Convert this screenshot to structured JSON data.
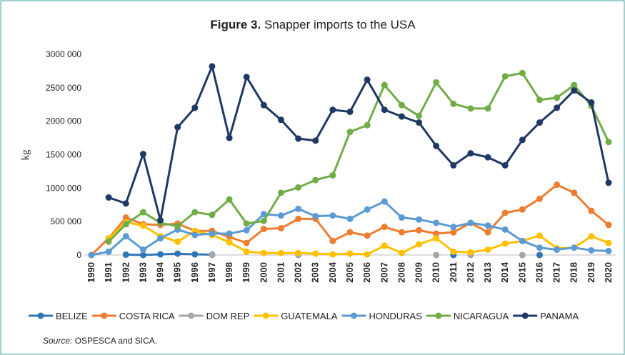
{
  "chart_data": {
    "type": "line",
    "title_label": "Figure 3.",
    "title": "Snapper imports to the USA",
    "y_label": "kg",
    "source_label": "Source:",
    "source": "OSPESCA and SICA.",
    "categories": [
      "1990",
      "1991",
      "1992",
      "1993",
      "1994",
      "1995",
      "1996",
      "1997",
      "1998",
      "1999",
      "2000",
      "2001",
      "2002",
      "2003",
      "2004",
      "2005",
      "2006",
      "2007",
      "2008",
      "2009",
      "2010",
      "2011",
      "2012",
      "2013",
      "2014",
      "2015",
      "2016",
      "2017",
      "2018",
      "2019",
      "2020"
    ],
    "ylim": [
      0,
      3000000
    ],
    "yticks": [
      0,
      {
        "value": 500000,
        "label": "500 000"
      },
      {
        "value": 1000000,
        "label": "1000 000"
      },
      {
        "value": 1500000,
        "label": "1500 000"
      },
      {
        "value": 2000000,
        "label": "2000 000"
      },
      {
        "value": 2500000,
        "label": "2500 000"
      },
      {
        "value": 3000000,
        "label": "3000 000"
      }
    ],
    "grid": false,
    "legend": "bottom",
    "series": [
      {
        "name": "BELIZE",
        "color": "#2e75b6",
        "values": [
          null,
          null,
          5000,
          0,
          10000,
          20000,
          10000,
          5000,
          null,
          null,
          null,
          null,
          null,
          null,
          null,
          null,
          null,
          null,
          null,
          null,
          null,
          0,
          null,
          null,
          null,
          null,
          0,
          null,
          null,
          null,
          null
        ]
      },
      {
        "name": "COSTA RICA",
        "color": "#ed7d31",
        "values": [
          0,
          250000,
          560000,
          460000,
          450000,
          470000,
          360000,
          360000,
          270000,
          180000,
          390000,
          400000,
          540000,
          540000,
          210000,
          340000,
          290000,
          420000,
          340000,
          370000,
          320000,
          340000,
          480000,
          340000,
          630000,
          680000,
          840000,
          1050000,
          930000,
          660000,
          450000
        ]
      },
      {
        "name": "DOM REP",
        "color": "#a5a5a5",
        "values": [
          null,
          null,
          null,
          null,
          null,
          null,
          null,
          0,
          null,
          null,
          null,
          null,
          0,
          null,
          null,
          null,
          null,
          null,
          null,
          null,
          0,
          null,
          0,
          null,
          null,
          0,
          null,
          null,
          null,
          null,
          null
        ]
      },
      {
        "name": "GUATEMALA",
        "color": "#ffc000",
        "values": [
          null,
          250000,
          490000,
          440000,
          280000,
          200000,
          360000,
          300000,
          190000,
          50000,
          30000,
          30000,
          30000,
          20000,
          10000,
          20000,
          10000,
          140000,
          30000,
          160000,
          250000,
          50000,
          40000,
          80000,
          170000,
          210000,
          290000,
          100000,
          110000,
          280000,
          180000
        ]
      },
      {
        "name": "HONDURAS",
        "color": "#5b9bd5",
        "values": [
          0,
          50000,
          280000,
          80000,
          250000,
          380000,
          300000,
          320000,
          320000,
          370000,
          610000,
          590000,
          690000,
          580000,
          590000,
          540000,
          680000,
          800000,
          560000,
          530000,
          480000,
          420000,
          480000,
          440000,
          380000,
          210000,
          110000,
          80000,
          110000,
          70000,
          60000
        ]
      },
      {
        "name": "NICARAGUA",
        "color": "#70ad47",
        "values": [
          null,
          200000,
          460000,
          640000,
          480000,
          430000,
          640000,
          600000,
          830000,
          470000,
          510000,
          930000,
          1010000,
          1120000,
          1190000,
          1840000,
          1940000,
          2540000,
          2240000,
          2080000,
          2580000,
          2260000,
          2190000,
          2190000,
          2670000,
          2720000,
          2320000,
          2350000,
          2540000,
          2230000,
          1690000
        ]
      },
      {
        "name": "PANAMA",
        "color": "#1f3864",
        "values": [
          null,
          860000,
          770000,
          1510000,
          520000,
          1910000,
          2200000,
          2820000,
          1750000,
          2660000,
          2240000,
          2020000,
          1740000,
          1710000,
          2170000,
          2140000,
          2620000,
          2170000,
          2070000,
          1980000,
          1630000,
          1340000,
          1520000,
          1460000,
          1340000,
          1720000,
          1980000,
          2200000,
          2460000,
          2280000,
          1080000
        ]
      }
    ]
  }
}
